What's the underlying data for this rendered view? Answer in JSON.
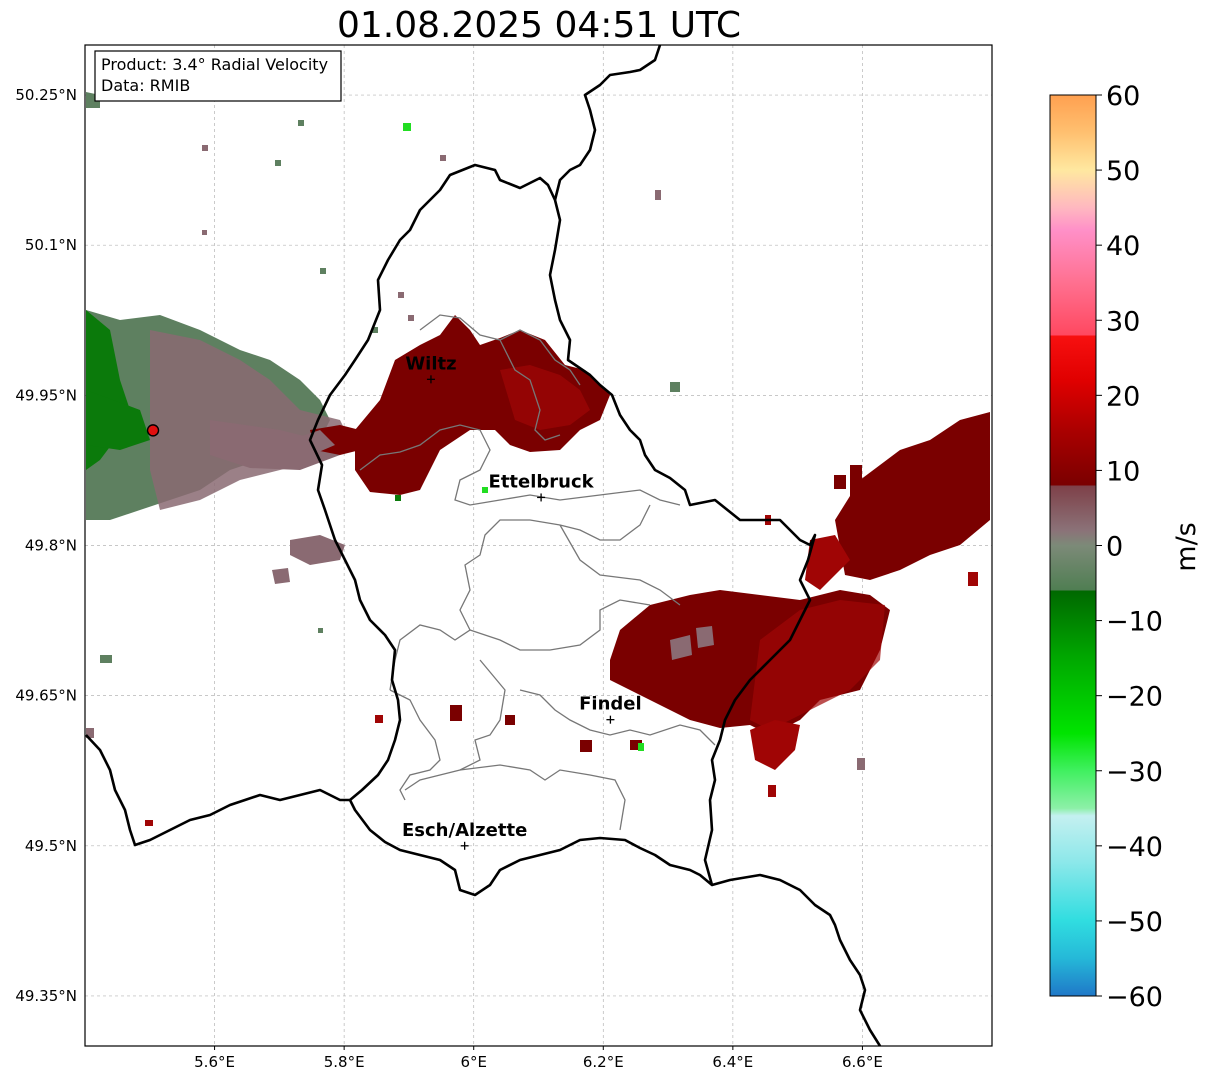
{
  "title": "01.08.2025 04:51 UTC",
  "info_box": {
    "product": "Product: 3.4° Radial Velocity",
    "data_source": "Data: RMIB"
  },
  "map": {
    "lon_range": [
      5.4,
      6.8
    ],
    "lat_range": [
      49.3,
      50.3
    ],
    "lat_ticks": [
      {
        "value": 50.25,
        "label": "50.25°N"
      },
      {
        "value": 50.1,
        "label": "50.1°N"
      },
      {
        "value": 49.95,
        "label": "49.95°N"
      },
      {
        "value": 49.8,
        "label": "49.8°N"
      },
      {
        "value": 49.65,
        "label": "49.65°N"
      },
      {
        "value": 49.5,
        "label": "49.5°N"
      },
      {
        "value": 49.35,
        "label": "49.35°N"
      }
    ],
    "lon_ticks": [
      {
        "value": 5.6,
        "label": "5.6°E"
      },
      {
        "value": 5.8,
        "label": "5.8°E"
      },
      {
        "value": 6.0,
        "label": "6°E"
      },
      {
        "value": 6.2,
        "label": "6.2°E"
      },
      {
        "value": 6.4,
        "label": "6.4°E"
      },
      {
        "value": 6.6,
        "label": "6.6°E"
      }
    ],
    "grid": true,
    "radar_site": {
      "lon": 5.505,
      "lat": 49.915,
      "color": "#e01010"
    },
    "cities": [
      {
        "name": "Wiltz",
        "lon": 5.934,
        "lat": 49.966
      },
      {
        "name": "Ettelbruck",
        "lon": 6.104,
        "lat": 49.848
      },
      {
        "name": "Findel",
        "lon": 6.211,
        "lat": 49.626
      },
      {
        "name": "Esch/Alzette",
        "lon": 5.986,
        "lat": 49.5
      }
    ],
    "echo_colors": {
      "inbound_dark_red": "#7a0000",
      "inbound_red": "#a00505",
      "near_zero_mauve": "#8a6a72",
      "near_zero_green": "#5e8060",
      "outbound_green": "#0b7a0b",
      "bright_green": "#22dd22"
    },
    "border_color": "#000000",
    "district_color": "#777777"
  },
  "colorbar": {
    "label": "m/s",
    "range": [
      -60,
      60
    ],
    "tick_values": [
      -60,
      -50,
      -40,
      -30,
      -20,
      -10,
      0,
      10,
      20,
      30,
      40,
      50,
      60
    ],
    "tick_labels": [
      "−60",
      "−50",
      "−40",
      "−30",
      "−20",
      "−10",
      "0",
      "10",
      "20",
      "30",
      "40",
      "50",
      "60"
    ],
    "stops": [
      {
        "v": -60,
        "color": "#1f78c8"
      },
      {
        "v": -55,
        "color": "#25b8d8"
      },
      {
        "v": -50,
        "color": "#30dde0"
      },
      {
        "v": -42,
        "color": "#8ee8ea"
      },
      {
        "v": -36,
        "color": "#c4f0f0"
      },
      {
        "v": -35,
        "color": "#8df0a8"
      },
      {
        "v": -30,
        "color": "#40f060"
      },
      {
        "v": -25,
        "color": "#00e400"
      },
      {
        "v": -15,
        "color": "#00a800"
      },
      {
        "v": -6,
        "color": "#006800"
      },
      {
        "v": -6,
        "color": "#4f7e52"
      },
      {
        "v": 0,
        "color": "#7c8a78"
      },
      {
        "v": 2,
        "color": "#8b7278"
      },
      {
        "v": 8,
        "color": "#7e4048"
      },
      {
        "v": 8,
        "color": "#7a0000"
      },
      {
        "v": 15,
        "color": "#a80000"
      },
      {
        "v": 22,
        "color": "#e00000"
      },
      {
        "v": 28,
        "color": "#f81010"
      },
      {
        "v": 28,
        "color": "#ff4860"
      },
      {
        "v": 35,
        "color": "#ff7090"
      },
      {
        "v": 42,
        "color": "#ff90c8"
      },
      {
        "v": 45,
        "color": "#ffb8c0"
      },
      {
        "v": 50,
        "color": "#ffe8a0"
      },
      {
        "v": 55,
        "color": "#ffc070"
      },
      {
        "v": 60,
        "color": "#ffa050"
      }
    ]
  }
}
